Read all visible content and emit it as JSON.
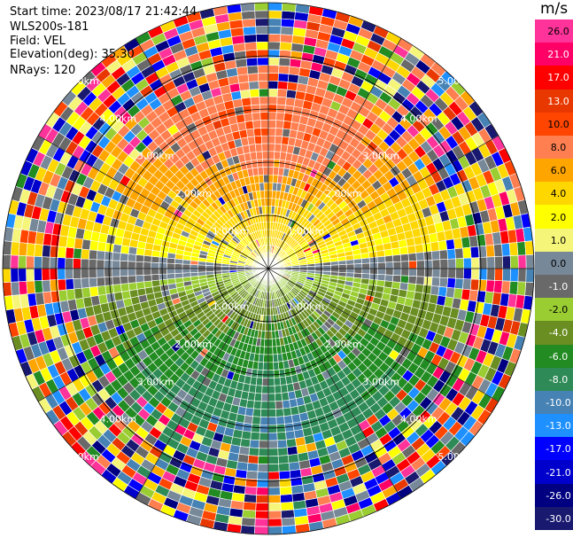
{
  "header": {
    "start_time": "Start time: 2023/08/17 21:42:44",
    "instrument": "WLS200s-181",
    "field": "Field: VEL",
    "elevation": "Elevation(deg): 35.30",
    "nrays": "NRays: 120"
  },
  "chart_data": {
    "type": "heatmap",
    "projection": "polar-ppi",
    "n_rays": 120,
    "range_rings_km": [
      1,
      2,
      3,
      4,
      5
    ],
    "range_ring_labels": [
      "1.00km",
      "2.00km",
      "3.00km",
      "4.00km",
      "5.00km"
    ],
    "colorbar": {
      "unit": "m/s",
      "ticks": [
        "26.0",
        "21.0",
        "17.0",
        "13.0",
        "10.0",
        "8.0",
        "6.0",
        "4.0",
        "2.0",
        "1.0",
        "0.0",
        "-1.0",
        "-2.0",
        "-4.0",
        "-6.0",
        "-8.0",
        "-10.0",
        "-13.0",
        "-17.0",
        "-21.0",
        "-26.0",
        "-30.0"
      ],
      "colors": [
        "#ff3399",
        "#ff0066",
        "#ff0000",
        "#e83800",
        "#ff4500",
        "#ff7f50",
        "#ffa500",
        "#ffd700",
        "#ffff00",
        "#f5f57a",
        "#778899",
        "#696969",
        "#9acd32",
        "#6b8e23",
        "#228b22",
        "#2e8b57",
        "#4682b4",
        "#1e90ff",
        "#0000ff",
        "#0000cd",
        "#000080",
        "#191970"
      ]
    },
    "velocity_pattern": {
      "positive_sector": "north (upper half)",
      "negative_sector": "south (lower half)",
      "max_abs_near_km": 2.5,
      "noisy_beyond_km": 3.5
    }
  }
}
